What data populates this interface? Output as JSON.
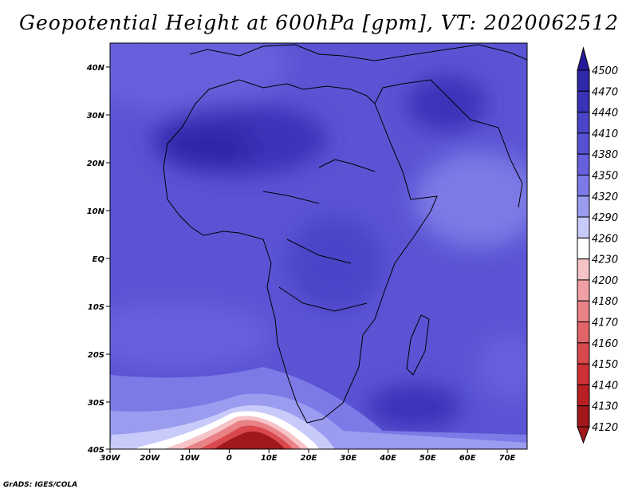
{
  "title": "Geopotential Height at 600hPa [gpm], VT: 2020062512",
  "credit": "GrADS: IGES/COLA",
  "map": {
    "lat_ticks": [
      "40N",
      "30N",
      "20N",
      "10N",
      "EQ",
      "10S",
      "20S",
      "30S",
      "40S"
    ],
    "lon_ticks": [
      "30W",
      "20W",
      "10W",
      "0",
      "10E",
      "20E",
      "30E",
      "40E",
      "50E",
      "60E",
      "70E"
    ],
    "lon_range": [
      -30,
      75
    ],
    "lat_range": [
      -40,
      45
    ]
  },
  "colorbar": {
    "levels": [
      "4500",
      "4470",
      "4440",
      "4410",
      "4380",
      "4350",
      "4320",
      "4290",
      "4260",
      "4230",
      "4200",
      "4180",
      "4170",
      "4160",
      "4150",
      "4140",
      "4130",
      "4120"
    ],
    "colors": [
      "#25199a",
      "#2e27a8",
      "#3a33b8",
      "#4a44c8",
      "#5650d2",
      "#6660dc",
      "#7c7ae6",
      "#9a9cf0",
      "#c8cbfa",
      "#ffffff",
      "#f6c3c6",
      "#f0a0a5",
      "#e88286",
      "#e06468",
      "#d8484c",
      "#cc3034",
      "#b82024",
      "#a0181c"
    ]
  }
}
